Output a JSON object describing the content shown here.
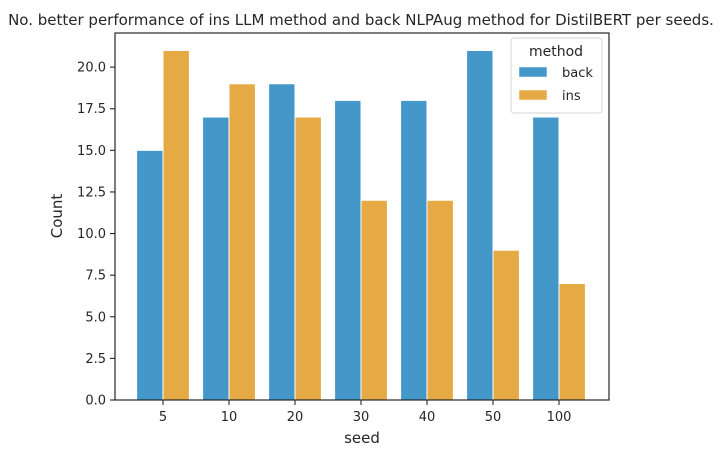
{
  "chart_data": {
    "type": "bar",
    "title": "No. better performance of ins LLM method and back NLPAug method for DistilBERT per seeds.",
    "xlabel": "seed",
    "ylabel": "Count",
    "categories": [
      "5",
      "10",
      "20",
      "30",
      "40",
      "50",
      "100"
    ],
    "series": [
      {
        "name": "back",
        "values": [
          15,
          17,
          19,
          18,
          18,
          21,
          17
        ],
        "color": "#4397c9"
      },
      {
        "name": "ins",
        "values": [
          21,
          19,
          17,
          12,
          12,
          9,
          7
        ],
        "color": "#e6aa45"
      }
    ],
    "ylim": [
      0,
      22.05
    ],
    "yticks": [
      "0.0",
      "2.5",
      "5.0",
      "7.5",
      "10.0",
      "12.5",
      "15.0",
      "17.5",
      "20.0"
    ],
    "grid": false,
    "legend": {
      "title": "method",
      "placement": "top-right"
    }
  }
}
